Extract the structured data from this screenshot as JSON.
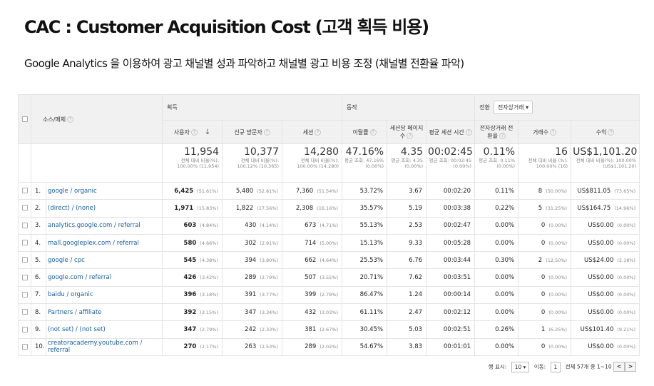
{
  "title": "CAC : Customer Acquisition Cost (고객 획득 비용)",
  "subtitle": "Google Analytics 을 이용하여 광고 채널별 성과 파악하고 채널별 광고 비용 조정 (채널별 전환율 파악)",
  "table": {
    "groups": {
      "source": "소스/매체",
      "acquisition": "획득",
      "behavior": "동작",
      "conversion": "전환",
      "conversion_select": "전자상거래"
    },
    "columns": [
      "사용자",
      "신규 방문자",
      "세션",
      "이탈률",
      "세션당 페이지수",
      "평균 세션 시간",
      "전자상거래 전환율",
      "거래수",
      "수익"
    ],
    "totals": [
      {
        "big": "11,954",
        "sm": "전체 대비 비율(%): 100.00% (11,954)"
      },
      {
        "big": "10,377",
        "sm": "전체 대비 비율(%): 100.12% (10,365)"
      },
      {
        "big": "14,280",
        "sm": "전체 대비 비율(%): 100.00% (14,280)"
      },
      {
        "big": "47.16%",
        "sm": "평균 조회: 47.16% (0.00%)"
      },
      {
        "big": "4.35",
        "sm": "평균 조회: 4.35 (0.00%)"
      },
      {
        "big": "00:02:45",
        "sm": "평균 조회: 00:02:45 (0.00%)"
      },
      {
        "big": "0.11%",
        "sm": "평균 조회: 0.11% (0.00%)"
      },
      {
        "big": "16",
        "sm": "전체 대비 비율 (%): 100.00% (16)"
      },
      {
        "big": "US$1,101.20",
        "sm": "전체 대비 비율(%): 100.00% (US$1,101.20)"
      }
    ],
    "rows": [
      {
        "idx": "1.",
        "source": "google / organic",
        "users": "6,425",
        "users_pct": "(51.61%)",
        "new": "5,480",
        "new_pct": "(52.81%)",
        "sessions": "7,360",
        "sessions_pct": "(51.54%)",
        "bounce": "53.72%",
        "pps": "3.67",
        "dur": "00:02:20",
        "conv": "0.11%",
        "tx": "8",
        "tx_pct": "(50.00%)",
        "rev": "US$811.05",
        "rev_pct": "(73.65%)"
      },
      {
        "idx": "2.",
        "source": "(direct) / (none)",
        "users": "1,971",
        "users_pct": "(15.83%)",
        "new": "1,822",
        "new_pct": "(17.56%)",
        "sessions": "2,308",
        "sessions_pct": "(16.16%)",
        "bounce": "35.57%",
        "pps": "5.19",
        "dur": "00:03:38",
        "conv": "0.22%",
        "tx": "5",
        "tx_pct": "(31.25%)",
        "rev": "US$164.75",
        "rev_pct": "(14.96%)"
      },
      {
        "idx": "3.",
        "source": "analytics.google.com / referral",
        "users": "603",
        "users_pct": "(4.84%)",
        "new": "430",
        "new_pct": "(4.14%)",
        "sessions": "673",
        "sessions_pct": "(4.71%)",
        "bounce": "55.13%",
        "pps": "2.53",
        "dur": "00:02:47",
        "conv": "0.00%",
        "tx": "0",
        "tx_pct": "(0.00%)",
        "rev": "US$0.00",
        "rev_pct": "(0.00%)"
      },
      {
        "idx": "4.",
        "source": "mall.googleplex.com / referral",
        "users": "580",
        "users_pct": "(4.66%)",
        "new": "302",
        "new_pct": "(2.91%)",
        "sessions": "714",
        "sessions_pct": "(5.00%)",
        "bounce": "15.13%",
        "pps": "9.33",
        "dur": "00:05:28",
        "conv": "0.00%",
        "tx": "0",
        "tx_pct": "(0.00%)",
        "rev": "US$0.00",
        "rev_pct": "(0.00%)"
      },
      {
        "idx": "5.",
        "source": "google / cpc",
        "users": "545",
        "users_pct": "(4.38%)",
        "new": "394",
        "new_pct": "(3.80%)",
        "sessions": "662",
        "sessions_pct": "(4.64%)",
        "bounce": "25.53%",
        "pps": "6.76",
        "dur": "00:03:44",
        "conv": "0.30%",
        "tx": "2",
        "tx_pct": "(12.50%)",
        "rev": "US$24.00",
        "rev_pct": "(2.18%)"
      },
      {
        "idx": "6.",
        "source": "google.com / referral",
        "users": "426",
        "users_pct": "(3.42%)",
        "new": "289",
        "new_pct": "(2.79%)",
        "sessions": "507",
        "sessions_pct": "(3.55%)",
        "bounce": "20.71%",
        "pps": "7.62",
        "dur": "00:03:51",
        "conv": "0.00%",
        "tx": "0",
        "tx_pct": "(0.00%)",
        "rev": "US$0.00",
        "rev_pct": "(0.00%)"
      },
      {
        "idx": "7.",
        "source": "baidu / organic",
        "users": "396",
        "users_pct": "(3.18%)",
        "new": "391",
        "new_pct": "(3.77%)",
        "sessions": "399",
        "sessions_pct": "(2.79%)",
        "bounce": "86.47%",
        "pps": "1.24",
        "dur": "00:00:14",
        "conv": "0.00%",
        "tx": "0",
        "tx_pct": "(0.00%)",
        "rev": "US$0.00",
        "rev_pct": "(0.00%)"
      },
      {
        "idx": "8.",
        "source": "Partners / affiliate",
        "users": "392",
        "users_pct": "(3.15%)",
        "new": "347",
        "new_pct": "(3.34%)",
        "sessions": "432",
        "sessions_pct": "(3.03%)",
        "bounce": "61.11%",
        "pps": "2.47",
        "dur": "00:02:12",
        "conv": "0.00%",
        "tx": "0",
        "tx_pct": "(0.00%)",
        "rev": "US$0.00",
        "rev_pct": "(0.00%)"
      },
      {
        "idx": "9.",
        "source": "(not set) / (not set)",
        "users": "347",
        "users_pct": "(2.79%)",
        "new": "242",
        "new_pct": "(2.33%)",
        "sessions": "381",
        "sessions_pct": "(2.67%)",
        "bounce": "30.45%",
        "pps": "5.03",
        "dur": "00:02:51",
        "conv": "0.26%",
        "tx": "1",
        "tx_pct": "(6.25%)",
        "rev": "US$101.40",
        "rev_pct": "(9.21%)"
      },
      {
        "idx": "10.",
        "source": "creatoracademy.youtube.com / referral",
        "users": "270",
        "users_pct": "(2.17%)",
        "new": "263",
        "new_pct": "(2.53%)",
        "sessions": "289",
        "sessions_pct": "(2.02%)",
        "bounce": "54.67%",
        "pps": "3.83",
        "dur": "00:01:01",
        "conv": "0.00%",
        "tx": "0",
        "tx_pct": "(0.00%)",
        "rev": "US$0.00",
        "rev_pct": "(0.00%)"
      }
    ]
  },
  "pager": {
    "rows_label": "행 표시:",
    "rows_value": "10",
    "goto_label": "이동:",
    "goto_value": "1",
    "summary": "전체 57개 중 1~10",
    "prev": "<",
    "next": ">"
  }
}
